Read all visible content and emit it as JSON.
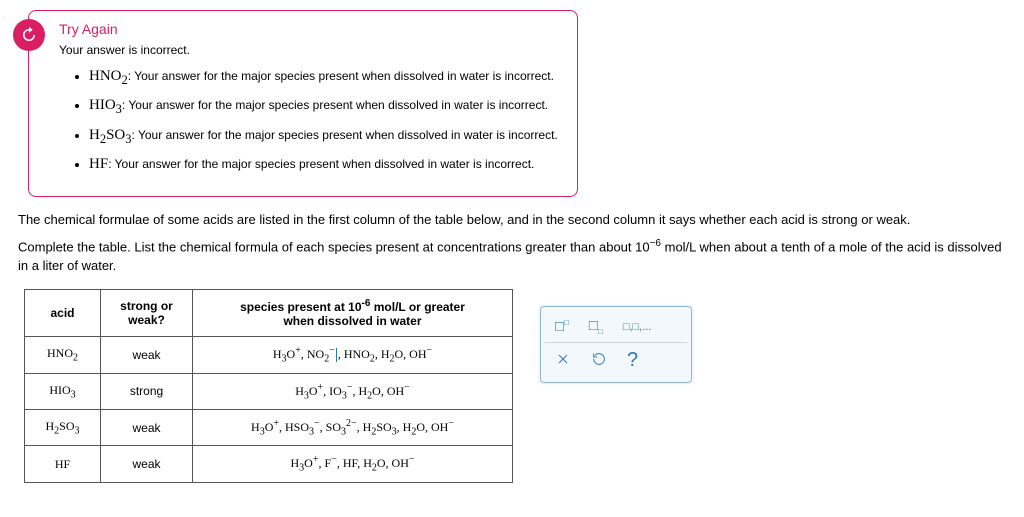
{
  "feedback": {
    "try_again": "Try Again",
    "incorrect": "Your answer is incorrect.",
    "items": [
      {
        "formula": "HNO<sub>2</sub>",
        "msg": ": Your answer for the major species present when dissolved in water is incorrect."
      },
      {
        "formula": "HIO<sub>3</sub>",
        "msg": ": Your answer for the major species present when dissolved in water is incorrect."
      },
      {
        "formula": "H<sub>2</sub>SO<sub>3</sub>",
        "msg": ": Your answer for the major species present when dissolved in water is incorrect."
      },
      {
        "formula": "HF",
        "msg": ": Your answer for the major species present when dissolved in water is incorrect."
      }
    ]
  },
  "problem": {
    "p1": "The chemical formulae of some acids are listed in the first column of the table below, and in the second column it says whether each acid is strong or weak.",
    "p2_a": "Complete the table. List the chemical formula of each species present at concentrations greater than about 10",
    "p2_exp": "−6",
    "p2_b": " mol/L when about a tenth of a mole of the acid is dissolved in a liter of water."
  },
  "table": {
    "headers": {
      "acid": "acid",
      "sw": "strong or weak?",
      "species_a": "species present at 10",
      "species_exp": "-6",
      "species_b": " mol/L or greater",
      "species_c": "when dissolved in water"
    },
    "rows": [
      {
        "acid": "HNO<sub>2</sub>",
        "sw": "weak",
        "species": "H<sub>3</sub>O<sup>+</sup>, NO<sub>2</sub><sup>−</sup>, HNO<sub>2</sub>, H<sub>2</sub>O, OH<sup>−</sup>",
        "edit": true
      },
      {
        "acid": "HIO<sub>3</sub>",
        "sw": "strong",
        "species": "H<sub>3</sub>O<sup>+</sup>, IO<sub>3</sub><sup>−</sup>, H<sub>2</sub>O, OH<sup>−</sup>"
      },
      {
        "acid": "H<sub>2</sub>SO<sub>3</sub>",
        "sw": "weak",
        "species": "H<sub>3</sub>O<sup>+</sup>, HSO<sub>3</sub><sup>−</sup>, SO<sub>3</sub><sup>2−</sup>, H<sub>2</sub>SO<sub>3</sub>, H<sub>2</sub>O, OH<sup>−</sup>"
      },
      {
        "acid": "HF",
        "sw": "weak",
        "species": "H<sub>3</sub>O<sup>+</sup>, F<sup>−</sup>, HF, H<sub>2</sub>O, OH<sup>−</sup>"
      }
    ]
  },
  "tools": {
    "t1": "□<sup style='font-size:8px'>□</sup>",
    "t2": "□<sub style='font-size:8px'>□</sub>",
    "t3": "□,□,..."
  },
  "colors": {
    "accent": "#d91e63",
    "tool_blue": "#2a7ab0",
    "tool_border": "#94b6d1",
    "table_border": "#555555"
  }
}
